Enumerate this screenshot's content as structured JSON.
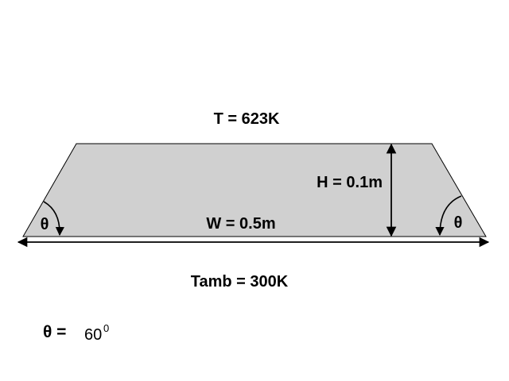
{
  "diagram": {
    "temperature_label": "T = 623K",
    "height_label": "H = 0.1m",
    "width_label": "W = 0.5m",
    "ambient_label": "Tamb = 300K",
    "angle_symbol_left": "θ",
    "angle_symbol_right": "θ",
    "angle_definition": {
      "symbol": "θ =",
      "value": "60",
      "superscript": "0"
    }
  },
  "colors": {
    "fill": "#d0d0d0",
    "stroke": "#000000",
    "background": "#ffffff"
  }
}
